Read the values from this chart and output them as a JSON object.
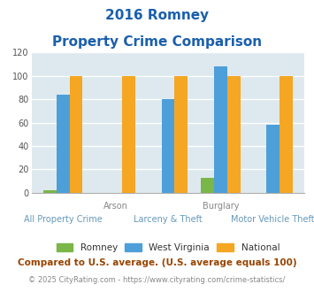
{
  "title_line1": "2016 Romney",
  "title_line2": "Property Crime Comparison",
  "title_color": "#1a5fad",
  "categories": [
    "All Property Crime",
    "Arson",
    "Larceny & Theft",
    "Burglary",
    "Motor Vehicle Theft"
  ],
  "x_labels_top": [
    "",
    "Arson",
    "",
    "Burglary",
    ""
  ],
  "x_labels_bottom": [
    "All Property Crime",
    "",
    "Larceny & Theft",
    "",
    "Motor Vehicle Theft"
  ],
  "romney": [
    2,
    0,
    0,
    13,
    0
  ],
  "west_virginia": [
    84,
    0,
    80,
    108,
    58
  ],
  "national": [
    100,
    100,
    100,
    100,
    100
  ],
  "romney_color": "#7ab648",
  "wv_color": "#4d9fda",
  "national_color": "#f5a623",
  "ylim": [
    0,
    120
  ],
  "yticks": [
    0,
    20,
    40,
    60,
    80,
    100,
    120
  ],
  "plot_bg_color": "#dde9ee",
  "grid_color": "#ffffff",
  "footer_text1": "Compared to U.S. average. (U.S. average equals 100)",
  "footer_text2": "© 2025 CityRating.com - https://www.cityrating.com/crime-statistics/",
  "footer_color1": "#994400",
  "footer_color2": "#888888",
  "url_color": "#4d9fda",
  "legend_labels": [
    "Romney",
    "West Virginia",
    "National"
  ],
  "legend_text_color": "#333333",
  "xlabel_top_color": "#888888",
  "xlabel_bot_color": "#6699bb",
  "bar_width": 0.25
}
